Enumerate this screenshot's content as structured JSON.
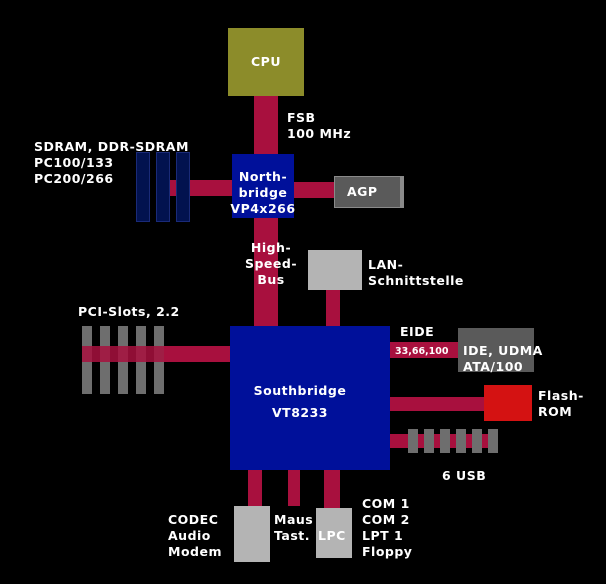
{
  "colors": {
    "background": "#000000",
    "bus": "#a8103e",
    "cpu": "#8c8c2a",
    "bridge": "#00109a",
    "grey_box": "#b4b4b4",
    "dark_grey_box": "#5a5a5a",
    "flash": "#d41212",
    "ram_module": "#02124f",
    "slot": "#6e6e6e"
  },
  "cpu": {
    "label": "CPU"
  },
  "fsb": {
    "line1": "FSB",
    "line2": "100 MHz"
  },
  "sdram": {
    "line1": "SDRAM, DDR-SDRAM",
    "line2": "PC100/133",
    "line3": "PC200/266"
  },
  "northbridge": {
    "line1": "North-",
    "line2": "bridge",
    "line3": "VP4x266"
  },
  "agp": {
    "label": "AGP"
  },
  "highspeed": {
    "line1": "High-",
    "line2": "Speed-",
    "line3": "Bus"
  },
  "lan": {
    "line1": "LAN-",
    "line2": "Schnittstelle"
  },
  "pci": {
    "label": "PCI-Slots, 2.2"
  },
  "eide": {
    "label": "EIDE",
    "speeds": "33,66,100"
  },
  "ide": {
    "line1": "IDE, UDMA",
    "line2": "ATA/100"
  },
  "southbridge": {
    "line1": "Southbridge",
    "line2": "VT8233"
  },
  "flash": {
    "line1": "Flash-",
    "line2": "ROM"
  },
  "usb": {
    "label": "6 USB"
  },
  "codec": {
    "line1": "CODEC",
    "line2": "Audio",
    "line3": "Modem"
  },
  "maus": {
    "line1": "Maus",
    "line2": "Tast."
  },
  "lpc": {
    "label": "LPC"
  },
  "legacy": {
    "line1": "COM 1",
    "line2": "COM 2",
    "line3": "LPT 1",
    "line4": "Floppy"
  }
}
